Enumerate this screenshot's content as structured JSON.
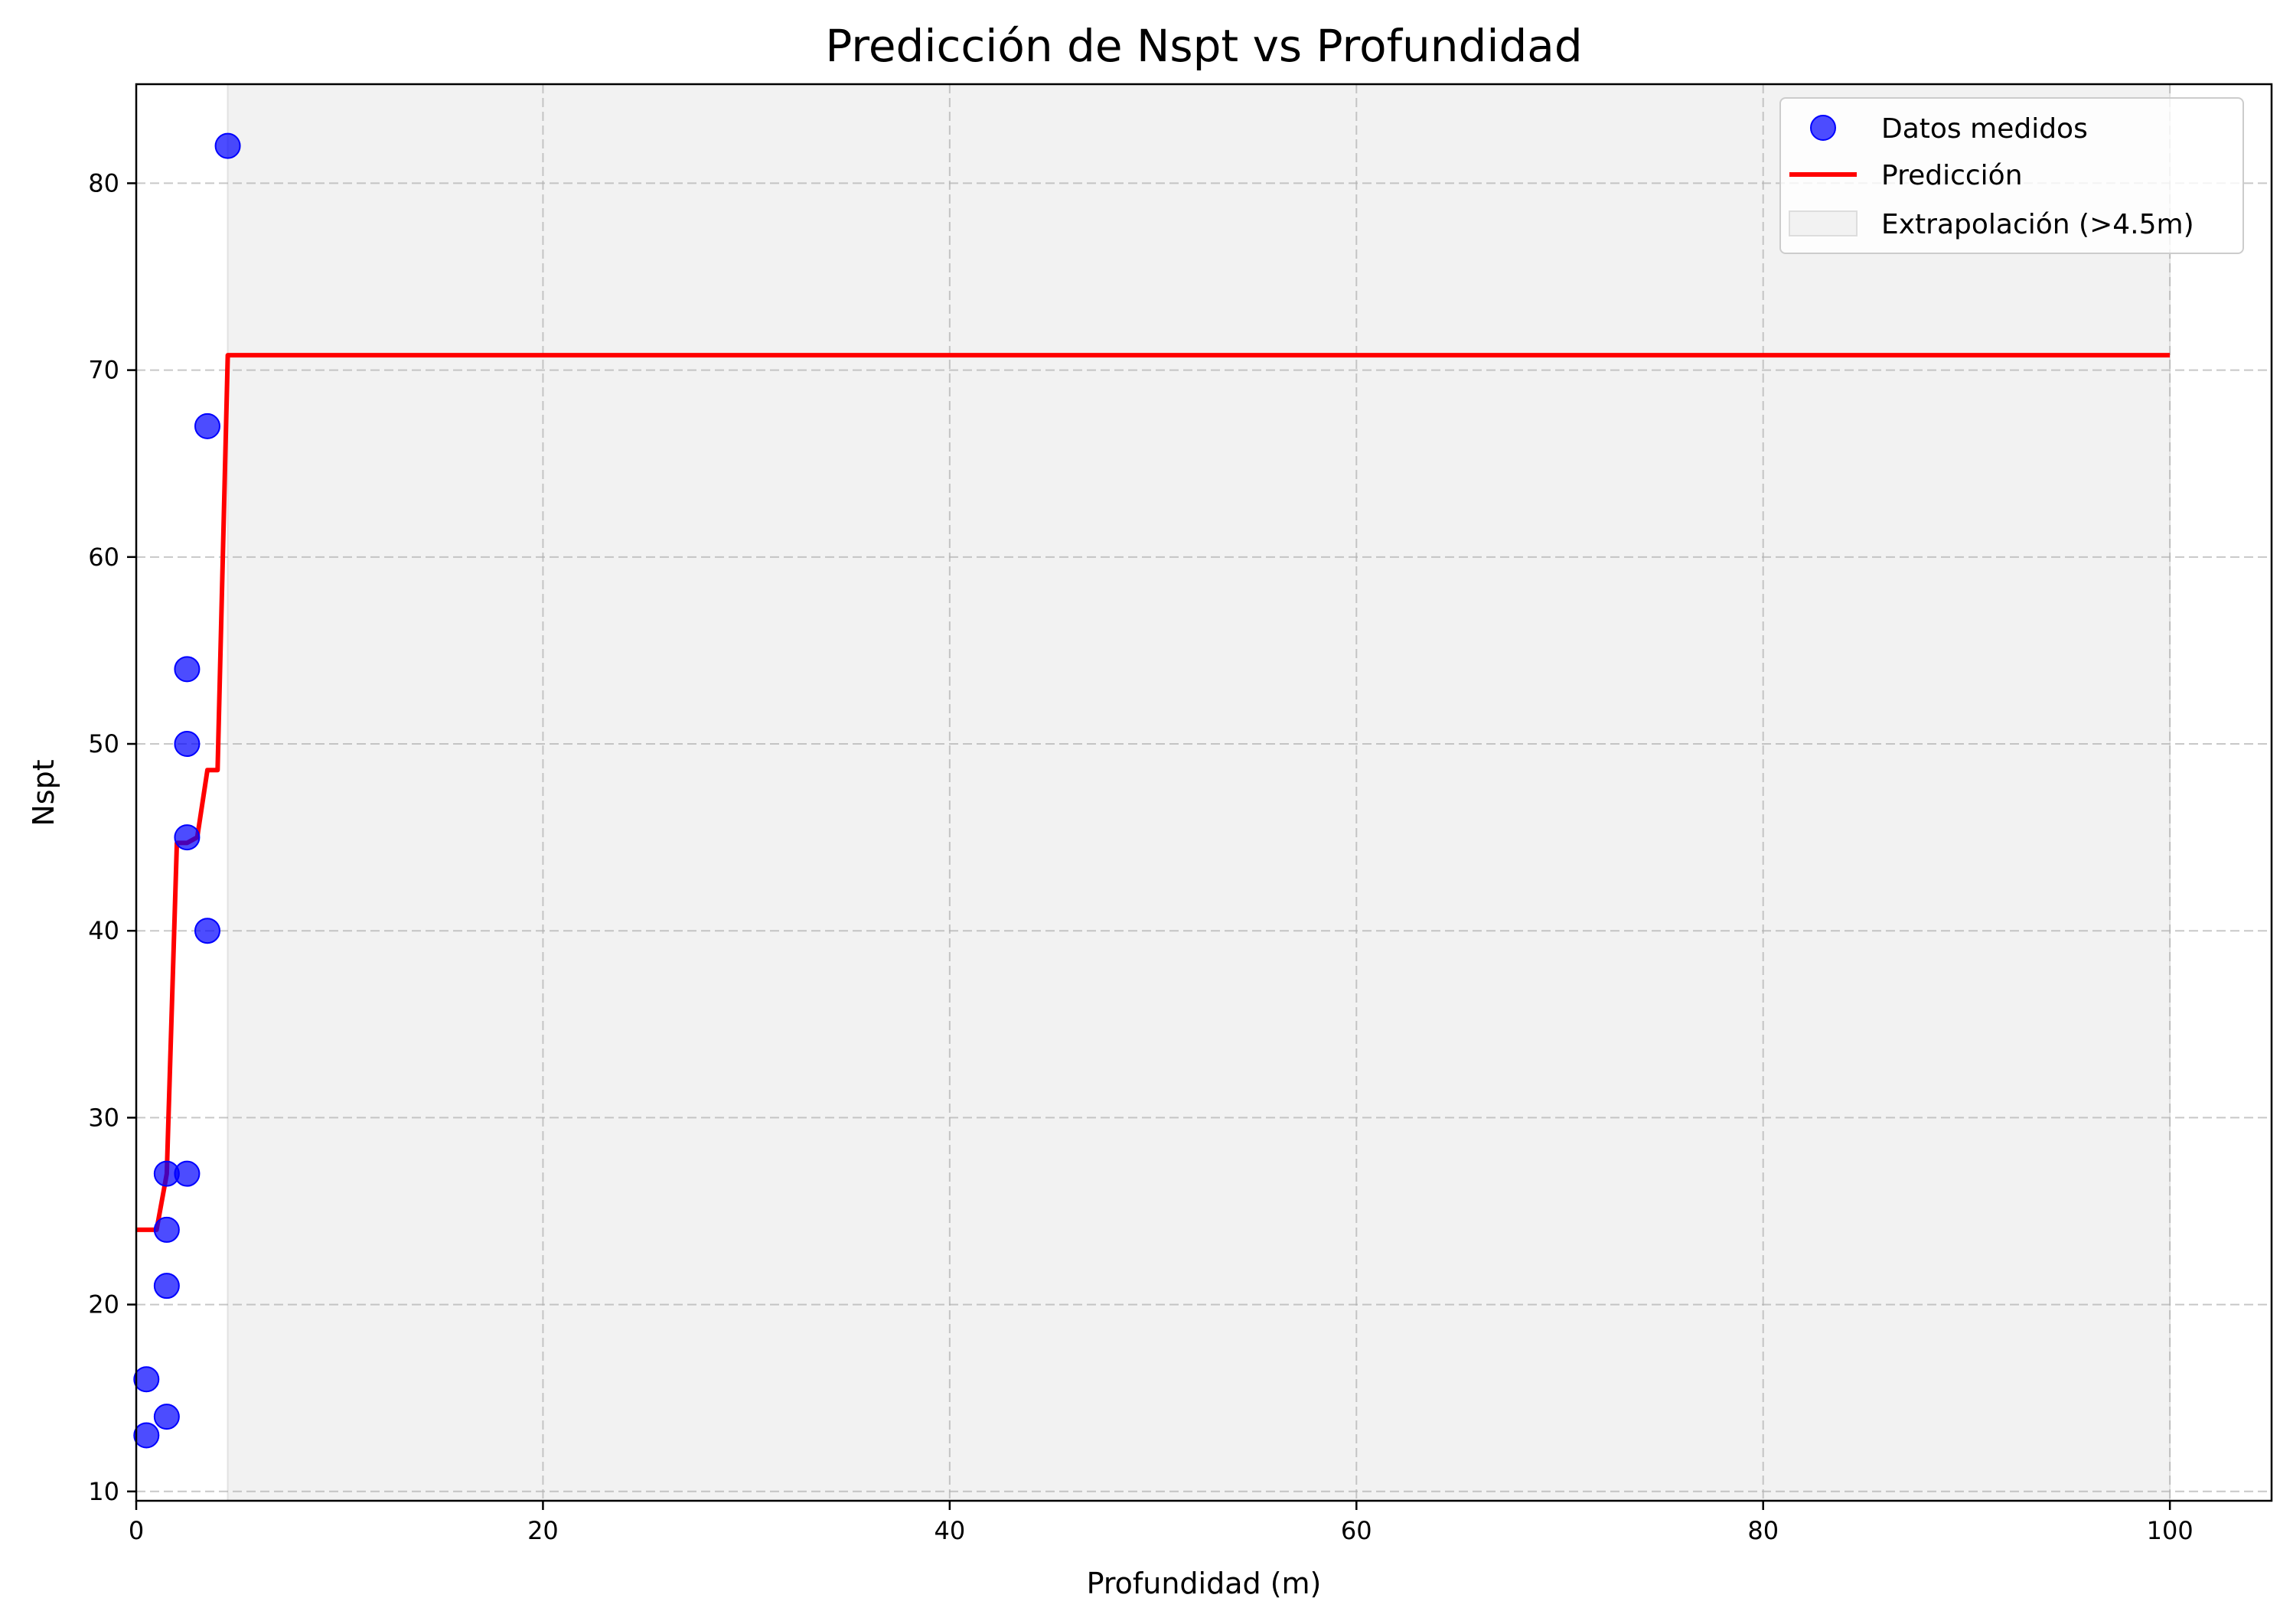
{
  "chart_data": {
    "type": "scatter",
    "title": "Predicción de Nspt vs Profundidad",
    "xlabel": "Profundidad (m)",
    "ylabel": "Nspt",
    "xlim": [
      0,
      105
    ],
    "ylim": [
      9.5,
      85.3
    ],
    "x_ticks": [
      0,
      20,
      40,
      60,
      80,
      100
    ],
    "y_ticks": [
      10,
      20,
      30,
      40,
      50,
      60,
      70,
      80
    ],
    "grid": true,
    "legend_position": "top-right",
    "shaded_region": {
      "name": "Extrapolación (>4.5m)",
      "x_start": 4.5,
      "x_end": 100,
      "color": "#f2f2f2"
    },
    "series": [
      {
        "name": "Datos medidos",
        "kind": "scatter",
        "color": "#0000ff",
        "points": [
          {
            "x": 0.5,
            "y": 13
          },
          {
            "x": 0.5,
            "y": 16
          },
          {
            "x": 1.5,
            "y": 14
          },
          {
            "x": 1.5,
            "y": 21
          },
          {
            "x": 1.5,
            "y": 24
          },
          {
            "x": 1.5,
            "y": 27
          },
          {
            "x": 2.5,
            "y": 27
          },
          {
            "x": 2.5,
            "y": 45
          },
          {
            "x": 2.5,
            "y": 50
          },
          {
            "x": 2.5,
            "y": 54
          },
          {
            "x": 3.5,
            "y": 40
          },
          {
            "x": 3.5,
            "y": 67
          },
          {
            "x": 4.5,
            "y": 82
          }
        ]
      },
      {
        "name": "Predicción",
        "kind": "line",
        "color": "#ff0000",
        "points": [
          {
            "x": 0,
            "y": 24
          },
          {
            "x": 1.0,
            "y": 24
          },
          {
            "x": 1.5,
            "y": 27
          },
          {
            "x": 2.0,
            "y": 44.7
          },
          {
            "x": 2.5,
            "y": 44.7
          },
          {
            "x": 3.0,
            "y": 45
          },
          {
            "x": 3.5,
            "y": 48.6
          },
          {
            "x": 4.0,
            "y": 48.6
          },
          {
            "x": 4.5,
            "y": 70.8
          },
          {
            "x": 100,
            "y": 70.8
          }
        ]
      }
    ]
  }
}
